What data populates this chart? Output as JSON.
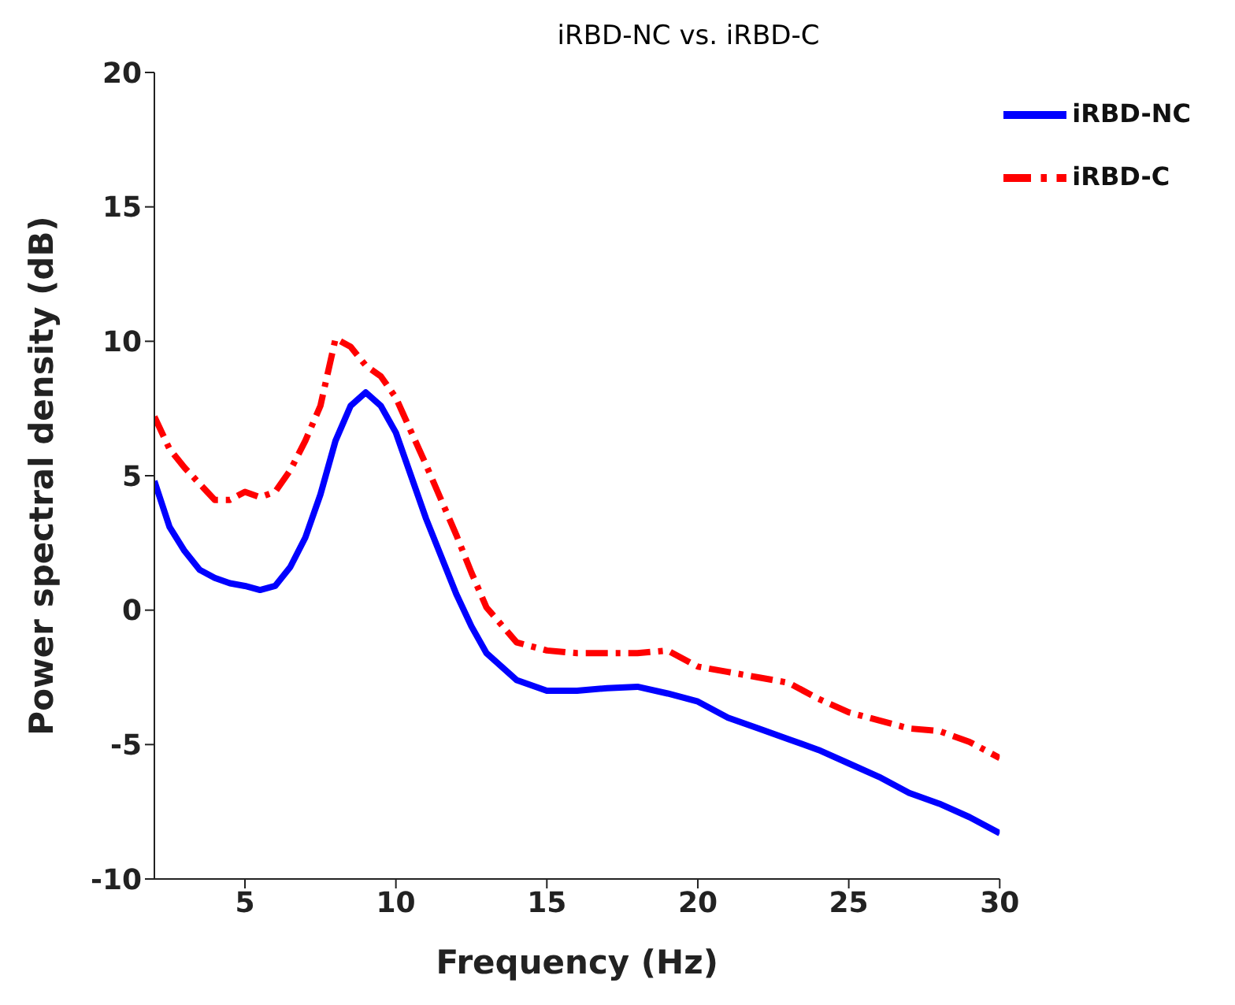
{
  "chart_data": {
    "type": "line",
    "title": "iRBD-NC vs. iRBD-C",
    "xlabel": "Frequency (Hz)",
    "ylabel": "Power spectral density (dB)",
    "x": [
      2,
      2.5,
      3,
      3.5,
      4,
      4.5,
      5,
      5.5,
      6,
      6.5,
      7,
      7.5,
      8,
      8.5,
      9,
      9.5,
      10,
      11,
      12,
      12.5,
      13,
      14,
      15,
      16,
      17,
      18,
      19,
      20,
      21,
      22,
      23,
      24,
      25,
      26,
      27,
      28,
      29,
      30
    ],
    "series": [
      {
        "name": "iRBD-NC",
        "color": "#0000ff",
        "line_style": "solid",
        "values": [
          4.8,
          3.1,
          2.2,
          1.5,
          1.2,
          1.0,
          0.9,
          0.75,
          0.9,
          1.6,
          2.7,
          4.3,
          6.3,
          7.6,
          8.1,
          7.6,
          6.6,
          3.4,
          0.6,
          -0.6,
          -1.6,
          -2.6,
          -3.0,
          -3.0,
          -2.9,
          -2.85,
          -3.1,
          -3.4,
          -4.0,
          -4.4,
          -4.8,
          -5.2,
          -5.7,
          -6.2,
          -6.8,
          -7.2,
          -7.7,
          -8.3
        ]
      },
      {
        "name": "iRBD-C",
        "color": "#ff0000",
        "line_style": "dashed",
        "values": [
          7.2,
          6.0,
          5.3,
          4.7,
          4.1,
          4.1,
          4.4,
          4.2,
          4.4,
          5.2,
          6.3,
          7.6,
          10.1,
          9.8,
          9.1,
          8.7,
          7.9,
          5.4,
          2.8,
          1.4,
          0.1,
          -1.2,
          -1.5,
          -1.6,
          -1.6,
          -1.6,
          -1.5,
          -2.1,
          -2.3,
          -2.5,
          -2.7,
          -3.3,
          -3.8,
          -4.1,
          -4.4,
          -4.5,
          -4.9,
          -5.5
        ]
      }
    ],
    "xlim": [
      2,
      30
    ],
    "xticks": [
      5,
      10,
      15,
      20,
      25,
      30
    ],
    "ylim": [
      -10,
      20
    ],
    "yticks": [
      -10,
      -5,
      0,
      5,
      10,
      15,
      20
    ],
    "grid": false,
    "legend": "top right",
    "marker": "none"
  }
}
